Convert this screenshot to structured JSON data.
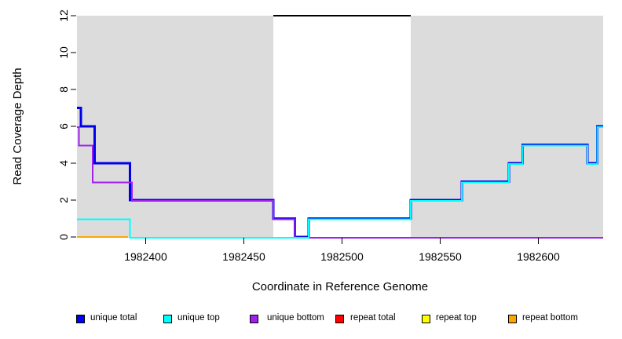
{
  "chart_data": {
    "type": "line",
    "subtype": "step-after",
    "title": "",
    "xlabel": "Coordinate in Reference Genome",
    "ylabel": "Read Coverage Depth",
    "xlim": [
      1982365,
      1982633
    ],
    "ylim": [
      0,
      12
    ],
    "x_ticks": [
      1982400,
      1982450,
      1982500,
      1982550,
      1982600
    ],
    "y_ticks": [
      0,
      2,
      4,
      6,
      8,
      10,
      12
    ],
    "grid": "off",
    "legend_position": "bottom",
    "shading_color": "#DCDCDC",
    "shaded_regions": [
      {
        "start": 1982365,
        "end": 1982465
      },
      {
        "start": 1982535,
        "end": 1982633
      }
    ],
    "repeat_region": {
      "start": 1982465,
      "end": 1982535,
      "top_line_depth": 12,
      "line_color": "#000000"
    },
    "series": [
      {
        "name": "unique total",
        "color": "#0000EE",
        "points": [
          [
            1982365,
            7
          ],
          [
            1982367,
            6
          ],
          [
            1982374,
            4
          ],
          [
            1982392,
            2
          ],
          [
            1982465,
            1
          ],
          [
            1982476,
            0
          ],
          [
            1982483,
            1
          ],
          [
            1982535,
            2
          ],
          [
            1982561,
            3
          ],
          [
            1982585,
            4
          ],
          [
            1982592,
            5
          ],
          [
            1982625,
            4
          ],
          [
            1982630,
            6
          ],
          [
            1982633,
            6
          ]
        ]
      },
      {
        "name": "unique bottom",
        "color": "#A020F0",
        "points": [
          [
            1982365,
            6
          ],
          [
            1982366,
            5
          ],
          [
            1982373,
            3
          ],
          [
            1982393,
            2
          ],
          [
            1982465,
            1
          ],
          [
            1982476,
            0
          ],
          [
            1982633,
            0
          ]
        ]
      },
      {
        "name": "unique top",
        "color": "#00FFFF",
        "points": [
          [
            1982365,
            1
          ],
          [
            1982392,
            0
          ],
          [
            1982483,
            1
          ],
          [
            1982535,
            2
          ],
          [
            1982561,
            3
          ],
          [
            1982585,
            4
          ],
          [
            1982592,
            5
          ],
          [
            1982625,
            4
          ],
          [
            1982630,
            6
          ],
          [
            1982633,
            6
          ]
        ]
      },
      {
        "name": "repeat bottom",
        "color": "#FFA500",
        "points": [
          [
            1982365,
            0
          ],
          [
            1982391,
            0
          ]
        ]
      }
    ],
    "legend": [
      {
        "label": "unique total",
        "color": "#0000EE"
      },
      {
        "label": "unique top",
        "color": "#00FFFF"
      },
      {
        "label": "unique bottom",
        "color": "#A020F0"
      },
      {
        "label": "repeat total",
        "color": "#FF0000"
      },
      {
        "label": "repeat top",
        "color": "#FFFF00"
      },
      {
        "label": "repeat bottom",
        "color": "#FFA500"
      }
    ]
  }
}
